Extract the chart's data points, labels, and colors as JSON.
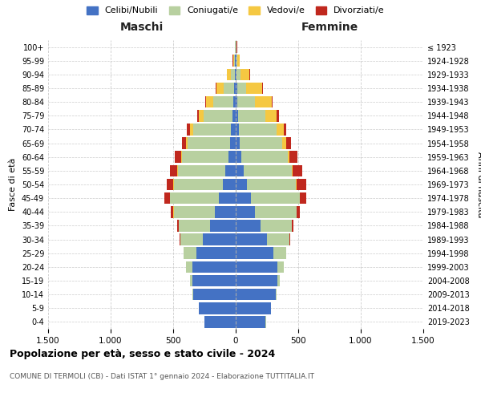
{
  "age_groups": [
    "0-4",
    "5-9",
    "10-14",
    "15-19",
    "20-24",
    "25-29",
    "30-34",
    "35-39",
    "40-44",
    "45-49",
    "50-54",
    "55-59",
    "60-64",
    "65-69",
    "70-74",
    "75-79",
    "80-84",
    "85-89",
    "90-94",
    "95-99",
    "100+"
  ],
  "birth_years": [
    "2019-2023",
    "2014-2018",
    "2009-2013",
    "2004-2008",
    "1999-2003",
    "1994-1998",
    "1989-1993",
    "1984-1988",
    "1979-1983",
    "1974-1978",
    "1969-1973",
    "1964-1968",
    "1959-1963",
    "1954-1958",
    "1949-1953",
    "1944-1948",
    "1939-1943",
    "1934-1938",
    "1929-1933",
    "1924-1928",
    "≤ 1923"
  ],
  "colors": {
    "celibi": "#4472c4",
    "coniugati": "#b8d0a0",
    "vedovi": "#f5c842",
    "divorziati": "#c0281e"
  },
  "maschi": {
    "celibi": [
      250,
      295,
      340,
      345,
      345,
      315,
      265,
      205,
      165,
      135,
      105,
      82,
      58,
      42,
      38,
      28,
      22,
      16,
      8,
      5,
      2
    ],
    "coniugati": [
      1,
      2,
      5,
      20,
      50,
      100,
      175,
      250,
      330,
      390,
      390,
      380,
      370,
      340,
      300,
      230,
      155,
      80,
      30,
      8,
      2
    ],
    "vedovi": [
      0,
      0,
      0,
      0,
      0,
      0,
      1,
      1,
      2,
      3,
      4,
      5,
      8,
      15,
      30,
      40,
      60,
      60,
      30,
      8,
      2
    ],
    "divorziati": [
      0,
      0,
      0,
      0,
      1,
      2,
      5,
      10,
      20,
      40,
      55,
      60,
      50,
      30,
      20,
      10,
      5,
      5,
      4,
      2,
      1
    ]
  },
  "femmine": {
    "nubili": [
      240,
      282,
      322,
      332,
      335,
      302,
      252,
      197,
      157,
      122,
      92,
      67,
      47,
      32,
      27,
      20,
      16,
      12,
      8,
      5,
      2
    ],
    "coniugate": [
      1,
      2,
      5,
      20,
      50,
      100,
      175,
      250,
      330,
      390,
      390,
      380,
      370,
      340,
      300,
      220,
      140,
      70,
      30,
      8,
      2
    ],
    "vedove": [
      0,
      0,
      0,
      0,
      0,
      0,
      1,
      1,
      2,
      4,
      5,
      8,
      15,
      35,
      55,
      90,
      130,
      130,
      70,
      20,
      5
    ],
    "divorziate": [
      0,
      0,
      0,
      0,
      1,
      2,
      5,
      12,
      25,
      50,
      80,
      80,
      60,
      35,
      25,
      15,
      10,
      8,
      5,
      2,
      1
    ]
  },
  "title": "Popolazione per età, sesso e stato civile - 2024",
  "subtitle": "COMUNE DI TERMOLI (CB) - Dati ISTAT 1° gennaio 2024 - Elaborazione TUTTITALIA.IT",
  "xlabel_left": "Maschi",
  "xlabel_right": "Femmine",
  "ylabel_left": "Fasce di età",
  "ylabel_right": "Anni di nascita",
  "xlim": 1500,
  "xtick_vals": [
    -1500,
    -1000,
    -500,
    0,
    500,
    1000,
    1500
  ],
  "xtick_labels": [
    "1.500",
    "1.000",
    "500",
    "0",
    "500",
    "1.000",
    "1.500"
  ],
  "legend_labels": [
    "Celibi/Nubili",
    "Coniugati/e",
    "Vedovi/e",
    "Divorziati/e"
  ],
  "background_color": "#ffffff",
  "grid_color": "#cccccc"
}
